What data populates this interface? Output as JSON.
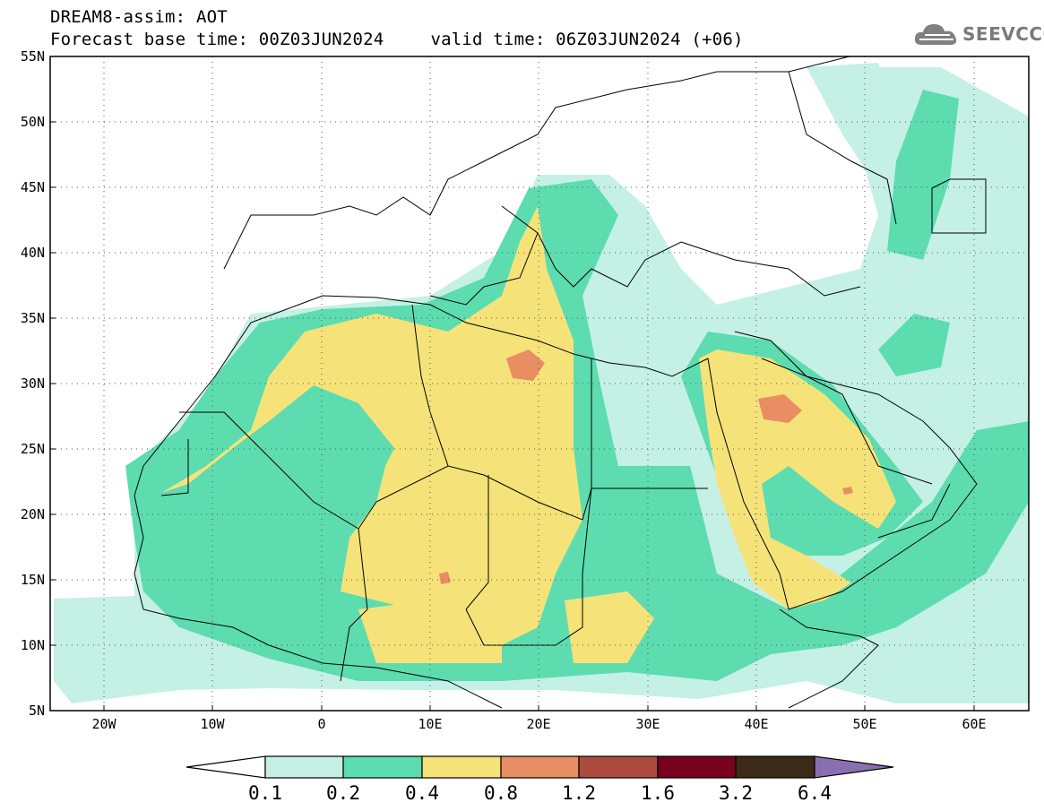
{
  "header": {
    "title_line1": "DREAM8-assim: AOT",
    "base_time": "Forecast base time: 00Z03JUN2024",
    "valid_time": "valid time: 06Z03JUN2024 (+06)",
    "logo_text": "SEEVCCC"
  },
  "map": {
    "lat_labels": [
      "55N",
      "50N",
      "45N",
      "40N",
      "35N",
      "30N",
      "25N",
      "20N",
      "15N",
      "10N",
      "5N"
    ],
    "lon_labels": [
      "20W",
      "10W",
      "0",
      "10E",
      "20E",
      "30E",
      "40E",
      "50E",
      "60E"
    ],
    "lon_range": [
      -25,
      65
    ],
    "lat_range": [
      5,
      55
    ],
    "grid": "dotted"
  },
  "colorbar": {
    "labels": [
      "0.1",
      "0.2",
      "0.4",
      "0.8",
      "1.2",
      "1.6",
      "3.2",
      "6.4"
    ],
    "colors": [
      "#ffffff",
      "#c5f0e6",
      "#5ddcb0",
      "#f5e37a",
      "#e98d62",
      "#ac4a3d",
      "#7a0020",
      "#3a2a16",
      "#8a6fb0"
    ]
  }
}
